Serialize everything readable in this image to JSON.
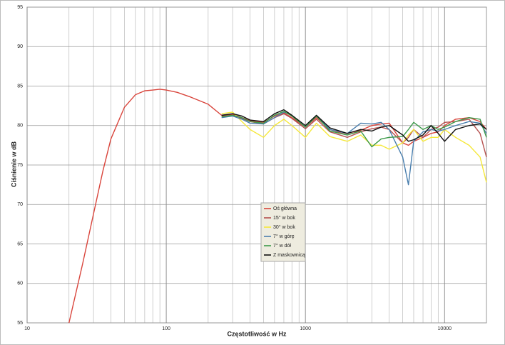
{
  "chart_data": {
    "type": "line",
    "xlabel": "Częstotliwość w Hz",
    "ylabel": "Ciśnienie w dB",
    "log_x": true,
    "grid": true,
    "xlim": [
      10,
      20000
    ],
    "xticks": [
      10,
      100,
      1000,
      10000
    ],
    "xminor_grid": [
      20,
      30,
      40,
      50,
      60,
      70,
      80,
      90,
      200,
      300,
      400,
      500,
      600,
      700,
      800,
      900,
      2000,
      3000,
      4000,
      5000,
      6000,
      7000,
      8000,
      9000
    ],
    "ylim": [
      55,
      95
    ],
    "yticks": [
      55,
      60,
      65,
      70,
      75,
      80,
      85,
      90,
      95
    ],
    "legend": "center",
    "x": [
      20,
      25,
      30,
      35,
      40,
      50,
      60,
      70,
      80,
      90,
      100,
      120,
      150,
      200,
      250,
      300,
      350,
      400,
      500,
      600,
      700,
      800,
      1000,
      1200,
      1500,
      2000,
      2500,
      3000,
      3500,
      4000,
      5000,
      5500,
      6000,
      7000,
      8000,
      9000,
      10000,
      12000,
      15000,
      18000,
      20000
    ],
    "series": [
      {
        "name": "Oś główna",
        "color": "#d9453c",
        "values": [
          55,
          62.4,
          68.8,
          74.2,
          78.3,
          82.3,
          83.9,
          84.4,
          84.5,
          84.6,
          84.5,
          84.2,
          83.6,
          82.7,
          81.3,
          81.4,
          81,
          80.6,
          80.4,
          81.2,
          81.6,
          81,
          79.8,
          81,
          79.5,
          78.8,
          79.4,
          80,
          80.2,
          80.3,
          77.8,
          77.5,
          78,
          78.5,
          79,
          79.2,
          80,
          80.8,
          81,
          80.5,
          79.5
        ]
      },
      {
        "name": "15° w bok",
        "color": "#b5514f",
        "values": [
          null,
          null,
          null,
          null,
          null,
          null,
          null,
          null,
          null,
          null,
          null,
          null,
          null,
          null,
          81.2,
          81.3,
          80.9,
          80.5,
          80.2,
          81,
          81.5,
          80.9,
          79.6,
          80.8,
          79.2,
          78.5,
          79.2,
          79.6,
          79.8,
          79.5,
          77.8,
          78.5,
          79.5,
          78.5,
          79.5,
          79.8,
          80.4,
          80.5,
          80.8,
          79,
          76
        ]
      },
      {
        "name": "30° w bok",
        "color": "#f5e83a",
        "values": [
          null,
          null,
          null,
          null,
          null,
          null,
          null,
          null,
          null,
          null,
          null,
          null,
          null,
          null,
          81.5,
          81.7,
          80.5,
          79.5,
          78.5,
          80,
          80.8,
          80,
          78.5,
          80.3,
          78.6,
          78,
          78.8,
          77.5,
          77.5,
          77,
          77.8,
          78.8,
          79.5,
          78,
          78.5,
          78.5,
          79.5,
          78.5,
          77.5,
          76,
          72.8
        ]
      },
      {
        "name": "7° w górę",
        "color": "#4a7fae",
        "values": [
          null,
          null,
          null,
          null,
          null,
          null,
          null,
          null,
          null,
          null,
          null,
          null,
          null,
          null,
          81,
          81.2,
          80.8,
          80.3,
          80.2,
          81,
          81.7,
          81.3,
          79.8,
          81.2,
          79.5,
          79,
          80.3,
          80.2,
          80.4,
          79.5,
          76,
          72.5,
          78,
          79.2,
          79.5,
          79.3,
          79.5,
          80,
          80.5,
          80.3,
          79
        ]
      },
      {
        "name": "7° w dół",
        "color": "#3d9a4a",
        "values": [
          null,
          null,
          null,
          null,
          null,
          null,
          null,
          null,
          null,
          null,
          null,
          null,
          null,
          null,
          81.1,
          81.3,
          81,
          80.5,
          80.3,
          81.3,
          81.8,
          81.2,
          79.8,
          81.2,
          79.3,
          78.8,
          79.3,
          77.3,
          78.3,
          78.5,
          78.6,
          79.5,
          80.4,
          79.5,
          80,
          79.5,
          79.8,
          80.5,
          81,
          80.8,
          78.5
        ]
      },
      {
        "name": "Z maskownicą",
        "color": "#111111",
        "values": [
          null,
          null,
          null,
          null,
          null,
          null,
          null,
          null,
          null,
          null,
          null,
          null,
          null,
          null,
          81.3,
          81.5,
          81.2,
          80.7,
          80.5,
          81.5,
          82,
          81.3,
          80,
          81.3,
          79.7,
          79,
          79.5,
          79.3,
          79.8,
          80,
          78.8,
          78,
          78.2,
          78.8,
          80,
          79,
          78,
          79.5,
          80,
          80.2,
          79.5
        ]
      }
    ]
  }
}
